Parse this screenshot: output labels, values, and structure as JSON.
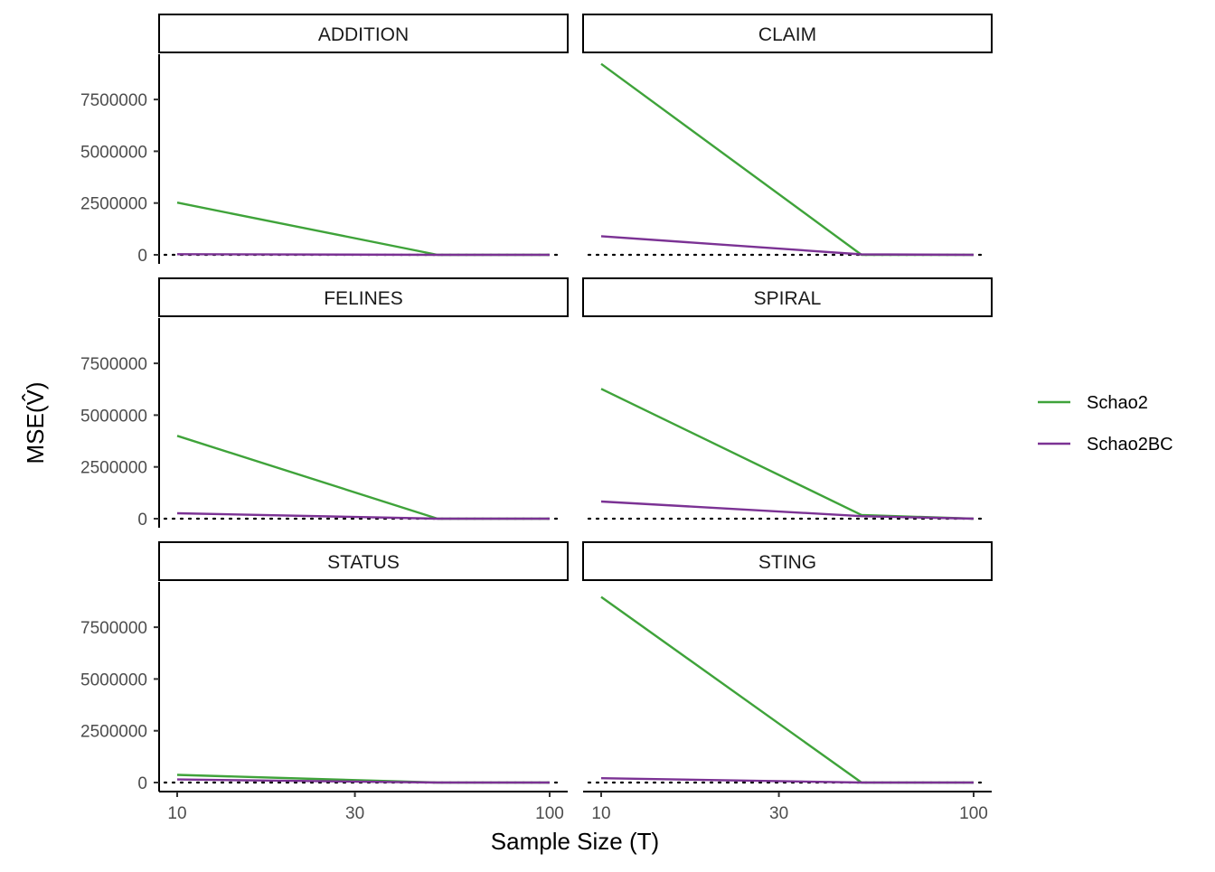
{
  "chart_data": {
    "type": "line",
    "xlabel": "Sample Size (T)",
    "ylabel": "MSE",
    "ylabel_symbol": "V",
    "x_scale": "log",
    "x_ticks": [
      10,
      30,
      100
    ],
    "x_tick_labels": [
      "10",
      "30",
      "100"
    ],
    "xlim": [
      10,
      100
    ],
    "y_ticks": [
      0,
      2500000,
      5000000,
      7500000
    ],
    "y_tick_labels": [
      "0",
      "2500000",
      "5000000",
      "7500000"
    ],
    "ylim": [
      0,
      9200000
    ],
    "reference_line": {
      "y": 0,
      "style": "dotted"
    },
    "grid": false,
    "legend": {
      "placement": "right"
    },
    "series_styles": [
      {
        "name": "Schao2",
        "color": "#3fa33a"
      },
      {
        "name": "Schao2BC",
        "color": "#7b3294"
      }
    ],
    "x": [
      10,
      50,
      100
    ],
    "panels": [
      {
        "title": "ADDITION",
        "series": [
          {
            "name": "Schao2",
            "values": [
              2520000,
              0,
              0
            ]
          },
          {
            "name": "Schao2BC",
            "values": [
              30000,
              0,
              0
            ]
          }
        ]
      },
      {
        "title": "CLAIM",
        "series": [
          {
            "name": "Schao2",
            "values": [
              9220000,
              0,
              0
            ]
          },
          {
            "name": "Schao2BC",
            "values": [
              900000,
              20000,
              0
            ]
          }
        ]
      },
      {
        "title": "FELINES",
        "series": [
          {
            "name": "Schao2",
            "values": [
              4000000,
              0,
              0
            ]
          },
          {
            "name": "Schao2BC",
            "values": [
              260000,
              0,
              0
            ]
          }
        ]
      },
      {
        "title": "SPIRAL",
        "series": [
          {
            "name": "Schao2",
            "values": [
              6270000,
              180000,
              0
            ]
          },
          {
            "name": "Schao2BC",
            "values": [
              830000,
              120000,
              0
            ]
          }
        ]
      },
      {
        "title": "STATUS",
        "series": [
          {
            "name": "Schao2",
            "values": [
              370000,
              0,
              0
            ]
          },
          {
            "name": "Schao2BC",
            "values": [
              150000,
              0,
              0
            ]
          }
        ]
      },
      {
        "title": "STING",
        "series": [
          {
            "name": "Schao2",
            "values": [
              8960000,
              0,
              0
            ]
          },
          {
            "name": "Schao2BC",
            "values": [
              210000,
              0,
              0
            ]
          }
        ]
      }
    ]
  }
}
